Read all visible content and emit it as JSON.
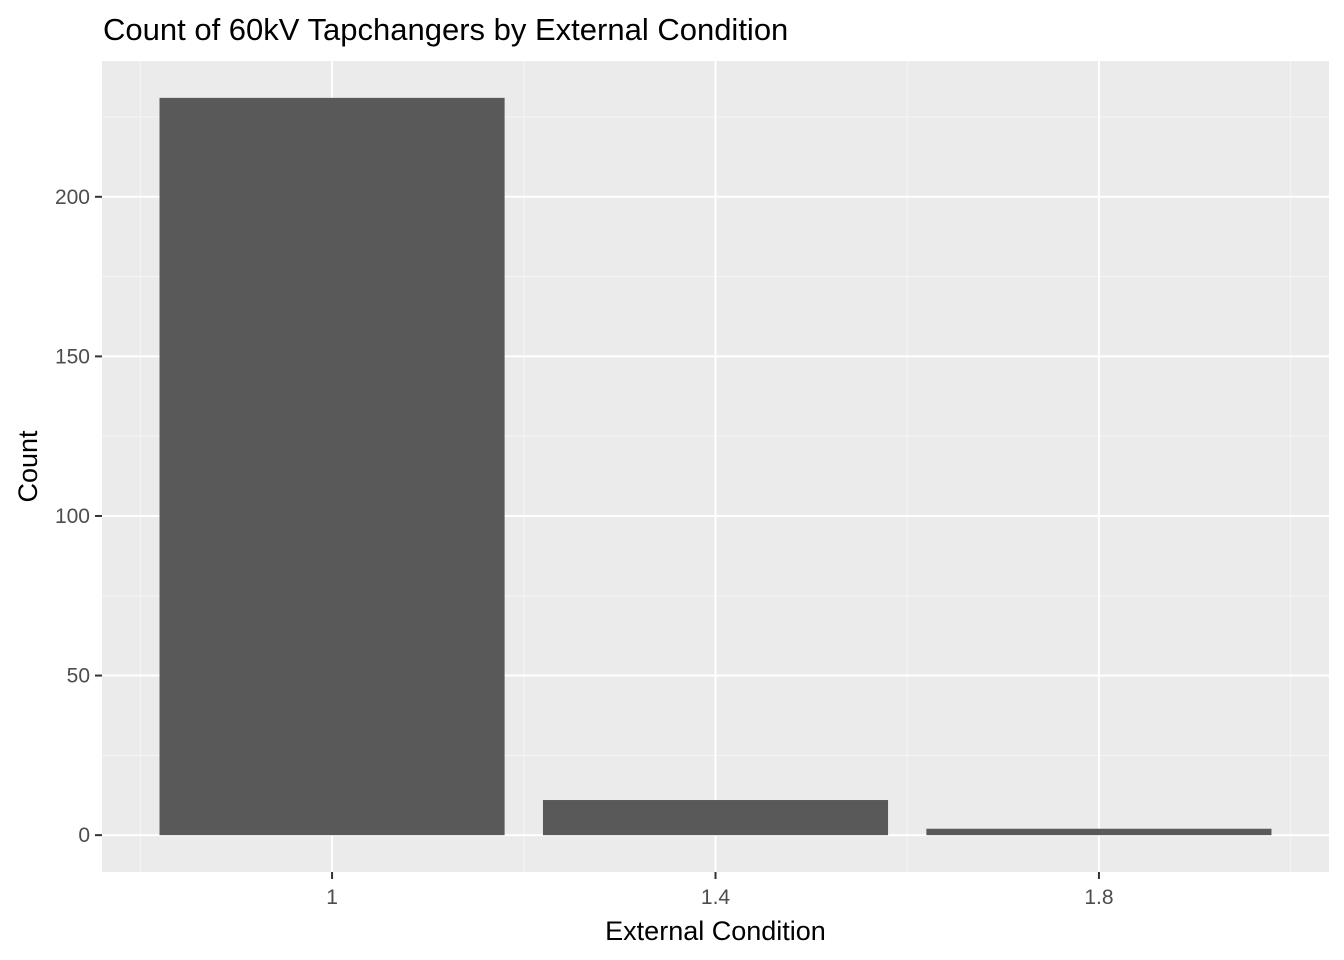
{
  "chart_data": {
    "type": "bar",
    "title": "Count of 60kV Tapchangers by External Condition",
    "xlabel": "External Condition",
    "ylabel": "Count",
    "x": [
      1.0,
      1.4,
      1.8
    ],
    "values": [
      231,
      11,
      2
    ],
    "x_ticks": [
      1.0,
      1.4,
      1.8
    ],
    "x_tick_labels": [
      "1",
      "1.4",
      "1.8"
    ],
    "xlim": [
      0.76,
      2.04
    ],
    "bar_width": 0.36,
    "y_ticks": [
      0,
      50,
      100,
      150,
      200
    ],
    "y_tick_labels": [
      "0",
      "50",
      "100",
      "150",
      "200"
    ],
    "ylim": [
      -11.55,
      242.55
    ],
    "grid": true,
    "legend": "none",
    "colors": {
      "bar": "#595959",
      "panel_background": "#ebebeb",
      "grid_major": "#ffffff",
      "grid_minor": "#f5f5f5",
      "tick_text": "#4d4d4d",
      "tick_mark": "#333333"
    }
  }
}
